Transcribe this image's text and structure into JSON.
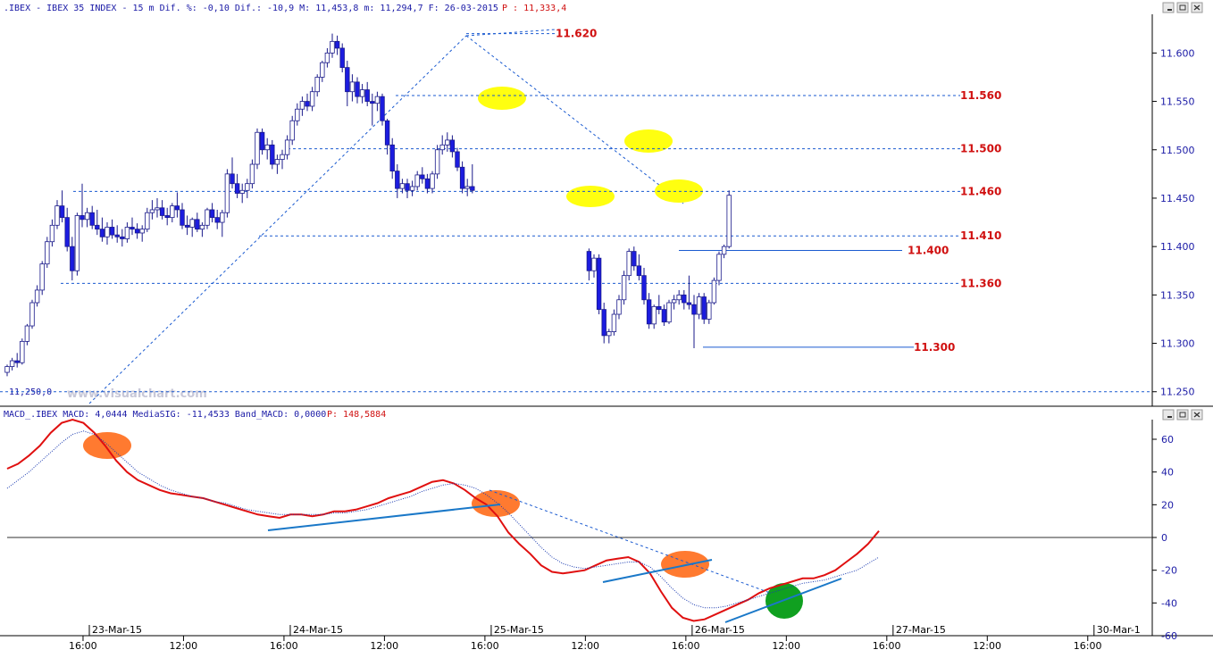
{
  "header": {
    "price_info": ".IBEX - IBEX 35 INDEX -  15 m Dif. %: -0,10 Dif.: -10,9 M: 11,453,8 m: 11,294,7 F: 26-03-2015",
    "price_last": "P : 11,333,4",
    "macd_info": "MACD_.IBEX MACD: 4,0444 MediaSIG: -11,4533 Band_MACD: 0,0000",
    "macd_last": "P: 148,5884"
  },
  "watermark": "www.visualchart.com",
  "low_label": "11,250,0",
  "colors": {
    "up_fill": "#ffffff",
    "down_fill": "#1c1ce0",
    "candle_outline": "#1a1a8a",
    "dashed_line": "#1a5ad0",
    "solid_level": "#1a5ad0",
    "level_text": "#d01010",
    "axis_text": "#1a1aa6",
    "macd_line": "#e01010",
    "signal_line": "#1a3ab0",
    "trend_line": "#1a78c8",
    "highlight_yellow": "#ffff10",
    "highlight_orange": "#ff7a30",
    "highlight_green": "#10a020"
  },
  "chart_data": [
    {
      "type": "candlestick",
      "title": ".IBEX - IBEX 35 INDEX - 15 m",
      "y_ticks": [
        "11.250",
        "11.300",
        "11.350",
        "11.400",
        "11.450",
        "11.500",
        "11.550",
        "11.600"
      ],
      "ylim": [
        11235,
        11640
      ],
      "x_tick_labels": [
        {
          "label": "16:00",
          "idx": 3
        },
        {
          "label": "23-Mar-15",
          "idx": 4
        },
        {
          "label": "12:00",
          "idx": 19
        },
        {
          "label": "16:00",
          "idx": 35
        },
        {
          "label": "24-Mar-15",
          "idx": 36
        },
        {
          "label": "12:00",
          "idx": 51
        },
        {
          "label": "16:00",
          "idx": 67
        },
        {
          "label": "25-Mar-15",
          "idx": 68
        },
        {
          "label": "12:00",
          "idx": 83
        },
        {
          "label": "16:00",
          "idx": 99
        },
        {
          "label": "26-Mar-15",
          "idx": 100
        },
        {
          "label": "12:00",
          "idx": 115
        },
        {
          "label": "16:00",
          "idx": 131
        },
        {
          "label": "27-Mar-15",
          "idx": 132
        },
        {
          "label": "12:00",
          "idx": 147
        },
        {
          "label": "16:00",
          "idx": 163
        },
        {
          "label": "30-Mar-1",
          "idx": 164
        }
      ],
      "levels": [
        {
          "label": "11.620",
          "value": 11620
        },
        {
          "label": "11.560",
          "value": 11556
        },
        {
          "label": "11.500",
          "value": 11501
        },
        {
          "label": "11.460",
          "value": 11457
        },
        {
          "label": "11.410",
          "value": 11411
        },
        {
          "label": "11.400",
          "value": 11396
        },
        {
          "label": "11.360",
          "value": 11362
        },
        {
          "label": "11.300",
          "value": 11296
        }
      ],
      "candles": [
        [
          11270,
          11278,
          11266,
          11276
        ],
        [
          11276,
          11285,
          11272,
          11282
        ],
        [
          11282,
          11290,
          11275,
          11280
        ],
        [
          11280,
          11305,
          11278,
          11302
        ],
        [
          11302,
          11320,
          11298,
          11318
        ],
        [
          11318,
          11345,
          11315,
          11342
        ],
        [
          11342,
          11360,
          11338,
          11355
        ],
        [
          11355,
          11385,
          11350,
          11382
        ],
        [
          11382,
          11410,
          11378,
          11405
        ],
        [
          11405,
          11428,
          11400,
          11422
        ],
        [
          11422,
          11448,
          11418,
          11442
        ],
        [
          11442,
          11458,
          11425,
          11430
        ],
        [
          11430,
          11440,
          11395,
          11400
        ],
        [
          11400,
          11410,
          11365,
          11375
        ],
        [
          11375,
          11435,
          11370,
          11432
        ],
        [
          11432,
          11465,
          11420,
          11428
        ],
        [
          11428,
          11440,
          11420,
          11435
        ],
        [
          11435,
          11442,
          11418,
          11422
        ],
        [
          11422,
          11438,
          11412,
          11418
        ],
        [
          11418,
          11430,
          11405,
          11410
        ],
        [
          11410,
          11425,
          11402,
          11420
        ],
        [
          11420,
          11428,
          11408,
          11412
        ],
        [
          11412,
          11422,
          11404,
          11410
        ],
        [
          11410,
          11418,
          11400,
          11408
        ],
        [
          11408,
          11425,
          11404,
          11420
        ],
        [
          11420,
          11430,
          11412,
          11418
        ],
        [
          11418,
          11424,
          11408,
          11414
        ],
        [
          11414,
          11422,
          11405,
          11418
        ],
        [
          11418,
          11440,
          11415,
          11435
        ],
        [
          11435,
          11448,
          11428,
          11438
        ],
        [
          11438,
          11450,
          11430,
          11440
        ],
        [
          11440,
          11448,
          11428,
          11432
        ],
        [
          11432,
          11440,
          11422,
          11430
        ],
        [
          11430,
          11445,
          11425,
          11442
        ],
        [
          11442,
          11456,
          11430,
          11438
        ],
        [
          11438,
          11445,
          11418,
          11422
        ],
        [
          11422,
          11432,
          11412,
          11420
        ],
        [
          11420,
          11430,
          11410,
          11428
        ],
        [
          11428,
          11435,
          11415,
          11418
        ],
        [
          11418,
          11425,
          11410,
          11422
        ],
        [
          11422,
          11440,
          11418,
          11438
        ],
        [
          11438,
          11445,
          11425,
          11430
        ],
        [
          11430,
          11438,
          11418,
          11425
        ],
        [
          11425,
          11438,
          11410,
          11435
        ],
        [
          11435,
          11480,
          11430,
          11475
        ],
        [
          11475,
          11492,
          11460,
          11465
        ],
        [
          11465,
          11475,
          11450,
          11455
        ],
        [
          11455,
          11465,
          11445,
          11458
        ],
        [
          11458,
          11470,
          11450,
          11465
        ],
        [
          11465,
          11490,
          11460,
          11485
        ],
        [
          11485,
          11522,
          11480,
          11518
        ],
        [
          11518,
          11522,
          11495,
          11500
        ],
        [
          11500,
          11512,
          11490,
          11505
        ],
        [
          11505,
          11510,
          11480,
          11485
        ],
        [
          11485,
          11495,
          11475,
          11490
        ],
        [
          11490,
          11500,
          11480,
          11495
        ],
        [
          11495,
          11515,
          11490,
          11510
        ],
        [
          11510,
          11535,
          11505,
          11530
        ],
        [
          11530,
          11548,
          11525,
          11542
        ],
        [
          11542,
          11555,
          11535,
          11550
        ],
        [
          11550,
          11558,
          11540,
          11545
        ],
        [
          11545,
          11565,
          11540,
          11560
        ],
        [
          11560,
          11578,
          11555,
          11575
        ],
        [
          11575,
          11592,
          11570,
          11590
        ],
        [
          11590,
          11605,
          11585,
          11600
        ],
        [
          11600,
          11620,
          11595,
          11612
        ],
        [
          11612,
          11618,
          11598,
          11605
        ],
        [
          11605,
          11610,
          11580,
          11585
        ],
        [
          11585,
          11592,
          11545,
          11560
        ],
        [
          11560,
          11578,
          11550,
          11570
        ],
        [
          11570,
          11575,
          11548,
          11555
        ],
        [
          11555,
          11568,
          11548,
          11562
        ],
        [
          11562,
          11570,
          11545,
          11550
        ],
        [
          11550,
          11558,
          11525,
          11548
        ],
        [
          11548,
          11560,
          11540,
          11555
        ],
        [
          11555,
          11558,
          11525,
          11530
        ],
        [
          11530,
          11532,
          11495,
          11505
        ],
        [
          11505,
          11512,
          11470,
          11478
        ],
        [
          11478,
          11485,
          11450,
          11460
        ],
        [
          11460,
          11470,
          11455,
          11465
        ],
        [
          11465,
          11470,
          11450,
          11458
        ],
        [
          11458,
          11468,
          11452,
          11462
        ],
        [
          11462,
          11478,
          11458,
          11474
        ],
        [
          11474,
          11482,
          11465,
          11470
        ],
        [
          11470,
          11475,
          11455,
          11460
        ],
        [
          11460,
          11478,
          11455,
          11475
        ],
        [
          11475,
          11505,
          11470,
          11500
        ],
        [
          11500,
          11515,
          11495,
          11505
        ],
        [
          11505,
          11518,
          11498,
          11510
        ],
        [
          11510,
          11515,
          11492,
          11498
        ],
        [
          11498,
          11502,
          11478,
          11482
        ],
        [
          11482,
          11488,
          11455,
          11460
        ],
        [
          11460,
          11470,
          11452,
          11462
        ],
        [
          11462,
          11485,
          11455,
          11458
        ],
        [
          11395,
          11398,
          11365,
          11375
        ],
        [
          11375,
          11392,
          11368,
          11388
        ],
        [
          11388,
          11392,
          11330,
          11335
        ],
        [
          11335,
          11342,
          11300,
          11308
        ],
        [
          11308,
          11315,
          11300,
          11312
        ],
        [
          11312,
          11335,
          11308,
          11330
        ],
        [
          11330,
          11350,
          11325,
          11345
        ],
        [
          11345,
          11375,
          11340,
          11370
        ],
        [
          11370,
          11398,
          11365,
          11395
        ],
        [
          11395,
          11400,
          11375,
          11380
        ],
        [
          11380,
          11392,
          11365,
          11370
        ],
        [
          11370,
          11378,
          11340,
          11345
        ],
        [
          11345,
          11352,
          11315,
          11320
        ],
        [
          11320,
          11340,
          11315,
          11338
        ],
        [
          11338,
          11350,
          11330,
          11335
        ],
        [
          11335,
          11340,
          11318,
          11322
        ],
        [
          11322,
          11345,
          11320,
          11342
        ],
        [
          11342,
          11350,
          11335,
          11345
        ],
        [
          11345,
          11355,
          11340,
          11350
        ],
        [
          11350,
          11355,
          11335,
          11342
        ],
        [
          11342,
          11370,
          11335,
          11340
        ],
        [
          11340,
          11350,
          11295,
          11330
        ],
        [
          11330,
          11352,
          11325,
          11348
        ],
        [
          11348,
          11352,
          11320,
          11325
        ],
        [
          11325,
          11345,
          11320,
          11342
        ],
        [
          11342,
          11368,
          11340,
          11365
        ],
        [
          11365,
          11395,
          11360,
          11392
        ],
        [
          11392,
          11402,
          11388,
          11400
        ],
        [
          11400,
          11458,
          11398,
          11453
        ]
      ]
    },
    {
      "type": "line",
      "title": "MACD_.IBEX",
      "y_ticks": [
        "60",
        "40",
        "20",
        "0",
        "-20",
        "-40",
        "-60"
      ],
      "ylim": [
        -60,
        72
      ],
      "series": [
        {
          "name": "MACD",
          "values": [
            42,
            45,
            50,
            56,
            64,
            70,
            72,
            70,
            64,
            56,
            47,
            40,
            35,
            32,
            29,
            27,
            26,
            25,
            24,
            22,
            20,
            18,
            16,
            14,
            13,
            12,
            14,
            14,
            13,
            14,
            16,
            16,
            17,
            19,
            21,
            24,
            26,
            28,
            31,
            34,
            35,
            33,
            29,
            24,
            20,
            13,
            3,
            -4,
            -10,
            -17,
            -21,
            -22,
            -21,
            -20,
            -17,
            -14,
            -13,
            -12,
            -15,
            -22,
            -33,
            -43,
            -49,
            -51,
            -50,
            -47,
            -44,
            -41,
            -38,
            -34,
            -31,
            -29,
            -27,
            -25,
            -25,
            -23,
            -20,
            -15,
            -10,
            -4,
            4
          ]
        },
        {
          "name": "MediaSIG",
          "values": [
            30,
            35,
            40,
            46,
            52,
            58,
            63,
            65,
            63,
            58,
            52,
            46,
            40,
            36,
            32,
            29,
            27,
            25,
            24,
            22,
            21,
            19,
            17,
            16,
            15,
            14,
            14,
            14,
            14,
            14,
            15,
            15,
            16,
            17,
            19,
            21,
            23,
            25,
            28,
            30,
            32,
            33,
            32,
            30,
            26,
            21,
            15,
            8,
            1,
            -6,
            -12,
            -16,
            -18,
            -19,
            -18,
            -17,
            -16,
            -15,
            -15,
            -18,
            -24,
            -31,
            -37,
            -41,
            -43,
            -43,
            -42,
            -40,
            -38,
            -36,
            -34,
            -32,
            -30,
            -28,
            -27,
            -26,
            -24,
            -22,
            -20,
            -16,
            -12
          ]
        }
      ]
    }
  ]
}
